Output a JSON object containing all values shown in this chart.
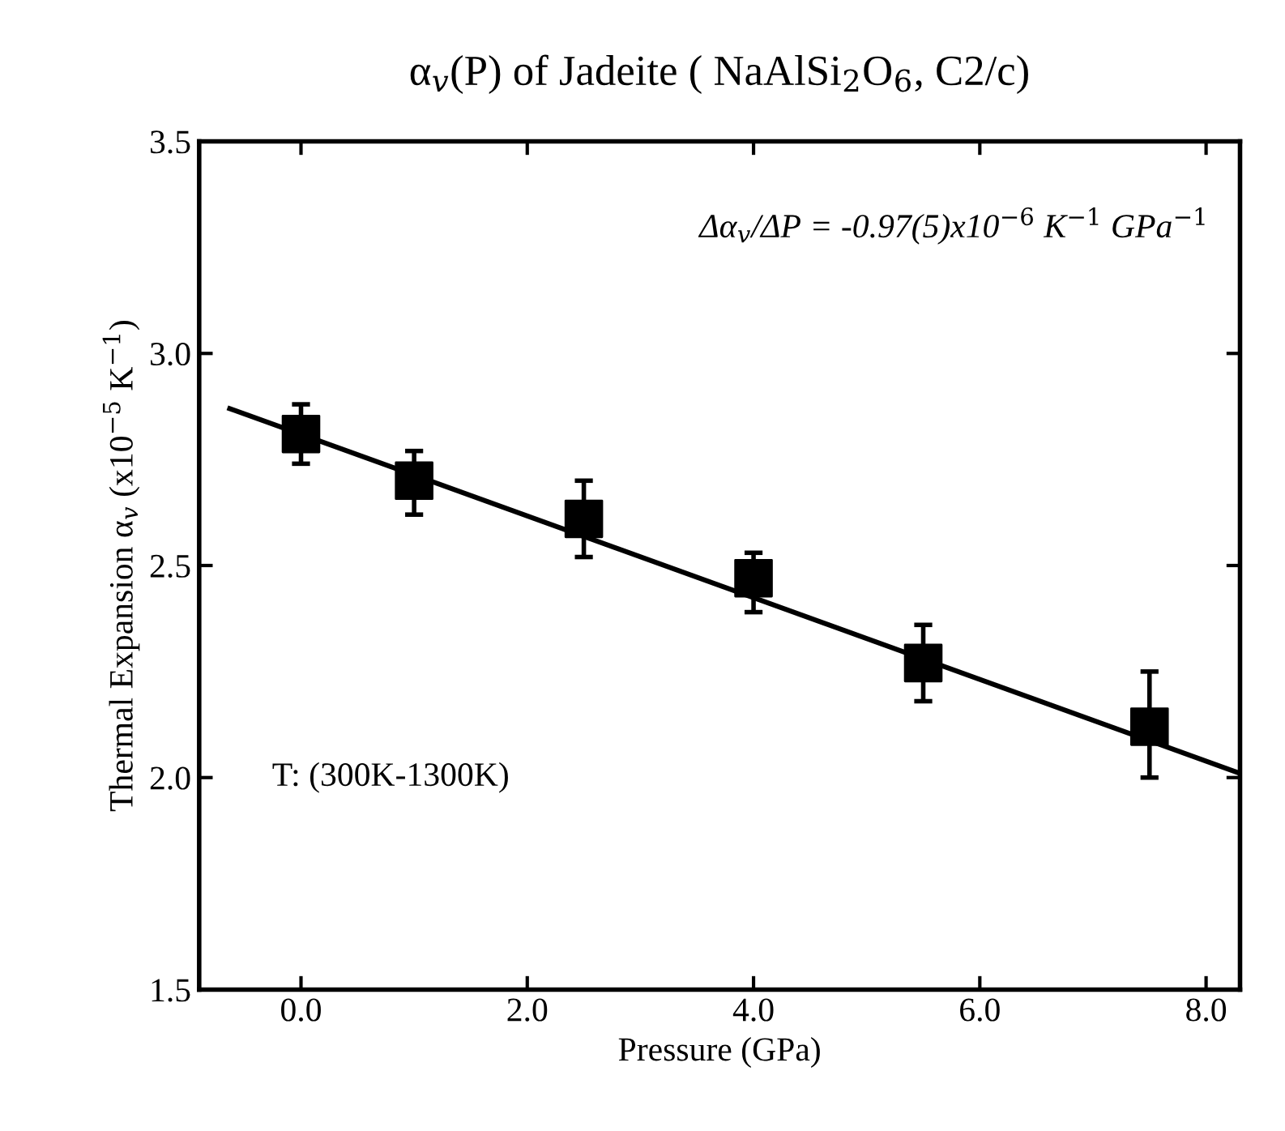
{
  "chart_data": {
    "type": "scatter",
    "title": "α$_{v}$(P) of Jadeite ( NaAlSi$_{2}$O$_{6}$, C2/c)",
    "xlabel": "Pressure (GPa)",
    "ylabel": "Thermal Expansion α$_{v}$ (x10$^{−5}$ K$^{−1}$)",
    "annotations": [
      "Δα$_{v}$/ΔP = -0.97(5)x10$^{−6}$ K$^{−1}$ GPa$^{−1}$",
      "T: (300K-1300K)"
    ],
    "series": [
      {
        "color": "#000000",
        "marker": "square",
        "x": [
          0.0,
          1.0,
          2.5,
          4.0,
          5.5,
          7.5
        ],
        "values": [
          2.81,
          2.7,
          2.61,
          2.47,
          2.27,
          2.12
        ],
        "errors": [
          [
            2.74,
            2.88
          ],
          [
            2.62,
            2.77
          ],
          [
            2.52,
            2.7
          ],
          [
            2.39,
            2.53
          ],
          [
            2.18,
            2.36
          ],
          [
            2.0,
            2.25
          ]
        ]
      },
      {
        "type": "line",
        "color": "#000000",
        "marker": "none",
        "line_style": "solid",
        "x": [
          -0.63,
          8.3
        ],
        "values": [
          2.87,
          2.01
        ]
      }
    ],
    "xlim": [
      -0.9,
      8.3
    ],
    "ylim": [
      1.5,
      3.5
    ],
    "xticks": [
      {
        "value": 0,
        "label": "0.0"
      },
      {
        "value": 2,
        "label": "2.0"
      },
      {
        "value": 4,
        "label": "4.0"
      },
      {
        "value": 6,
        "label": "6.0"
      },
      {
        "value": 8,
        "label": "8.0"
      }
    ],
    "yticks": [
      1.5,
      2.5,
      3.5,
      {
        "value": 2,
        "label": "2.0"
      },
      {
        "value": 3,
        "label": "3.0"
      }
    ],
    "grid": false,
    "legend": false
  }
}
